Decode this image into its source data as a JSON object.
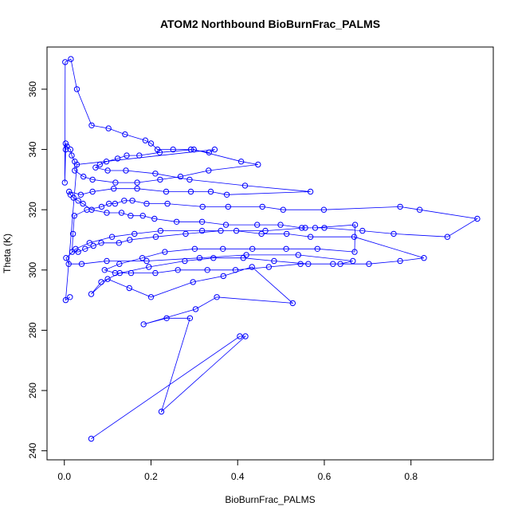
{
  "chart_data": {
    "type": "scatter",
    "title": "ATOM2 Northbound BioBurnFrac_PALMS",
    "xlabel": "BioBurnFrac_PALMS",
    "ylabel": "Theta (K)",
    "xlim": [
      -0.04,
      0.99
    ],
    "ylim": [
      237,
      374
    ],
    "xticks": [
      0.0,
      0.2,
      0.4,
      0.6,
      0.8
    ],
    "xtick_labels": [
      "0.0",
      "0.2",
      "0.4",
      "0.6",
      "0.8"
    ],
    "yticks": [
      240,
      260,
      280,
      300,
      320,
      340,
      360
    ],
    "ytick_labels": [
      "240",
      "260",
      "280",
      "300",
      "320",
      "340",
      "360"
    ],
    "grid": false,
    "legend": "none",
    "color": "#0000ff",
    "connected": true,
    "series": [
      {
        "x": [
          0.062,
          0.405,
          0.418,
          0.224,
          0.29,
          0.236,
          0.183,
          0.303,
          0.352,
          0.527,
          0.433,
          0.367,
          0.297,
          0.2,
          0.15,
          0.1,
          0.062,
          0.085,
          0.128,
          0.195,
          0.278,
          0.344,
          0.413,
          0.484,
          0.563,
          0.637,
          0.666,
          0.54,
          0.42,
          0.312,
          0.19,
          0.098,
          0.04,
          0.01,
          0.004,
          0.026,
          0.058,
          0.11,
          0.162,
          0.222,
          0.318,
          0.397,
          0.455,
          0.513,
          0.568,
          0.669,
          0.83,
          0.775,
          0.703,
          0.62,
          0.545,
          0.472,
          0.395,
          0.33,
          0.262,
          0.21,
          0.154,
          0.117,
          0.093,
          0.127,
          0.18,
          0.232,
          0.301,
          0.366,
          0.434,
          0.512,
          0.584,
          0.67,
          0.671,
          0.579,
          0.556,
          0.464,
          0.361,
          0.28,
          0.211,
          0.151,
          0.126,
          0.085,
          0.067,
          0.048,
          0.032,
          0.018,
          0.02,
          0.023,
          0.052,
          0.086,
          0.103,
          0.117,
          0.138,
          0.157,
          0.19,
          0.238,
          0.319,
          0.378,
          0.457,
          0.505,
          0.599,
          0.775,
          0.82,
          0.953,
          0.884,
          0.76,
          0.688,
          0.6,
          0.548,
          0.499,
          0.445,
          0.373,
          0.318,
          0.259,
          0.208,
          0.181,
          0.153,
          0.132,
          0.098,
          0.063,
          0.043,
          0.032,
          0.021,
          0.014,
          0.011,
          0.038,
          0.065,
          0.114,
          0.168,
          0.235,
          0.292,
          0.338,
          0.375,
          0.568,
          0.417,
          0.289,
          0.21,
          0.142,
          0.1,
          0.072,
          0.082,
          0.097,
          0.123,
          0.144,
          0.173,
          0.22,
          0.299,
          0.408,
          0.447,
          0.333,
          0.268,
          0.221,
          0.168,
          0.118,
          0.065,
          0.044,
          0.024,
          0.024,
          0.017,
          0.014,
          0.006,
          0.003,
          0.003,
          0.001,
          0.002,
          0.015,
          0.029,
          0.063,
          0.102,
          0.14,
          0.187,
          0.2,
          0.215,
          0.251,
          0.292,
          0.334,
          0.347,
          0.029,
          0.003,
          0.013
        ],
        "y": [
          244,
          278,
          278,
          253,
          284,
          284,
          282,
          287,
          291,
          289,
          301,
          298,
          296,
          291,
          294,
          297,
          292,
          296,
          299,
          301,
          303,
          304,
          304,
          303,
          302,
          302,
          303,
          305,
          305,
          304,
          303,
          303,
          302,
          302,
          304,
          307,
          309,
          311,
          312,
          313,
          313,
          313,
          312,
          312,
          311,
          311,
          304,
          303,
          302,
          302,
          302,
          301,
          300,
          300,
          300,
          299,
          299,
          299,
          300,
          302,
          304,
          306,
          307,
          307,
          307,
          307,
          307,
          306,
          315,
          314,
          314,
          313,
          313,
          312,
          311,
          310,
          309,
          309,
          308,
          307,
          306,
          306,
          312,
          318,
          320,
          321,
          322,
          322,
          323,
          323,
          322,
          322,
          321,
          321,
          321,
          320,
          320,
          321,
          320,
          317,
          311,
          312,
          313,
          314,
          314,
          315,
          315,
          315,
          316,
          316,
          317,
          318,
          318,
          319,
          319,
          320,
          322,
          323,
          324,
          325,
          326,
          325,
          326,
          327,
          327,
          326,
          326,
          326,
          325,
          326,
          328,
          330,
          332,
          333,
          333,
          334,
          335,
          336,
          337,
          338,
          338,
          339,
          340,
          336,
          335,
          333,
          331,
          330,
          329,
          329,
          330,
          331,
          333,
          336,
          338,
          340,
          341,
          342,
          340,
          329,
          369,
          370,
          360,
          348,
          347,
          345,
          343,
          342,
          340,
          340,
          340,
          339,
          340,
          335,
          290,
          291
        ]
      }
    ]
  }
}
